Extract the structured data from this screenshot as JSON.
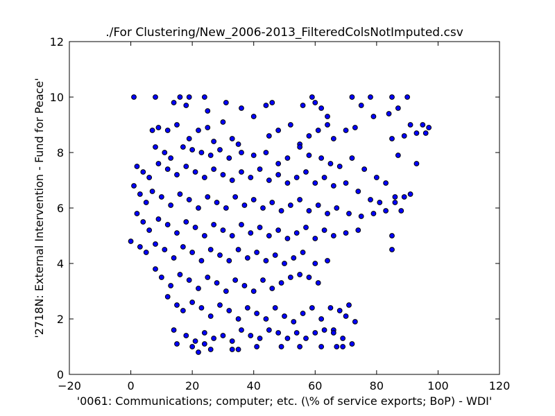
{
  "chart_data": {
    "type": "scatter",
    "title": "./For Clustering/New_2006-2013_FilteredColsNotImputed.csv",
    "xlabel": "'0061: Communications; computer; etc.  (\\% of service exports; BoP) - WDI'",
    "ylabel": "'2718N: External Intervention - Fund for Peace'",
    "xlim": [
      -20,
      120
    ],
    "ylim": [
      0,
      12
    ],
    "xticks": [
      -20,
      0,
      20,
      40,
      60,
      80,
      100,
      120
    ],
    "yticks": [
      0,
      2,
      4,
      6,
      8,
      10,
      12
    ],
    "xtick_labels": [
      "−20",
      "0",
      "20",
      "40",
      "60",
      "80",
      "100",
      "120"
    ],
    "ytick_labels": [
      "0",
      "2",
      "4",
      "6",
      "8",
      "10",
      "12"
    ],
    "grid": false,
    "marker_color": "#0000ff",
    "marker_edge_color": "#000000",
    "series": [
      {
        "name": "points",
        "points": [
          [
            1,
            10
          ],
          [
            8,
            10
          ],
          [
            16,
            10
          ],
          [
            19,
            10
          ],
          [
            24,
            10
          ],
          [
            14,
            9.8
          ],
          [
            18,
            9.7
          ],
          [
            25,
            9.5
          ],
          [
            31,
            9.8
          ],
          [
            36,
            9.6
          ],
          [
            44,
            9.7
          ],
          [
            46,
            9.8
          ],
          [
            56,
            9.7
          ],
          [
            59,
            10
          ],
          [
            60,
            9.8
          ],
          [
            62,
            9.6
          ],
          [
            64,
            9.3
          ],
          [
            72,
            10
          ],
          [
            75,
            9.7
          ],
          [
            78,
            10
          ],
          [
            79,
            9.3
          ],
          [
            85,
            10
          ],
          [
            87,
            9.6
          ],
          [
            90,
            10
          ],
          [
            84,
            9.4
          ],
          [
            91,
            9
          ],
          [
            93,
            8.7
          ],
          [
            95,
            9
          ],
          [
            97,
            8.9
          ],
          [
            96,
            8.7
          ],
          [
            89,
            8.6
          ],
          [
            93,
            7.6
          ],
          [
            85,
            8.5
          ],
          [
            87,
            7.9
          ],
          [
            91,
            6.5
          ],
          [
            89,
            6.4
          ],
          [
            88,
            5.9
          ],
          [
            86,
            6.2
          ],
          [
            85,
            5
          ],
          [
            85,
            4.5
          ],
          [
            7,
            8.8
          ],
          [
            9,
            8.9
          ],
          [
            12,
            8.8
          ],
          [
            15,
            9
          ],
          [
            19,
            8.5
          ],
          [
            22,
            8.8
          ],
          [
            25,
            8.9
          ],
          [
            27,
            8.4
          ],
          [
            30,
            9.1
          ],
          [
            33,
            8.5
          ],
          [
            35,
            8.3
          ],
          [
            40,
            9.3
          ],
          [
            45,
            8.6
          ],
          [
            48,
            8.8
          ],
          [
            52,
            9
          ],
          [
            55,
            8.3
          ],
          [
            58,
            8.6
          ],
          [
            61,
            8.8
          ],
          [
            64,
            9
          ],
          [
            66,
            8.5
          ],
          [
            70,
            8.8
          ],
          [
            73,
            8.9
          ],
          [
            8,
            8.2
          ],
          [
            11,
            8
          ],
          [
            13,
            7.8
          ],
          [
            17,
            8.2
          ],
          [
            20,
            8.1
          ],
          [
            23,
            8
          ],
          [
            26,
            7.9
          ],
          [
            29,
            8.1
          ],
          [
            32,
            7.8
          ],
          [
            36,
            8
          ],
          [
            40,
            7.9
          ],
          [
            44,
            8
          ],
          [
            48,
            7.6
          ],
          [
            51,
            7.8
          ],
          [
            55,
            8.2
          ],
          [
            58,
            7.9
          ],
          [
            62,
            7.8
          ],
          [
            65,
            7.6
          ],
          [
            68,
            7.5
          ],
          [
            72,
            7.8
          ],
          [
            76,
            7.4
          ],
          [
            80,
            7.1
          ],
          [
            83,
            6.9
          ],
          [
            2,
            7.5
          ],
          [
            4,
            7.3
          ],
          [
            6,
            7.1
          ],
          [
            9,
            7.6
          ],
          [
            12,
            7.4
          ],
          [
            15,
            7.2
          ],
          [
            18,
            7.5
          ],
          [
            21,
            7.3
          ],
          [
            24,
            7.1
          ],
          [
            27,
            7.4
          ],
          [
            30,
            7.2
          ],
          [
            33,
            7
          ],
          [
            36,
            7.3
          ],
          [
            39,
            7.1
          ],
          [
            42,
            7.4
          ],
          [
            45,
            7
          ],
          [
            48,
            7.2
          ],
          [
            51,
            6.9
          ],
          [
            54,
            7.1
          ],
          [
            57,
            7.3
          ],
          [
            60,
            6.9
          ],
          [
            63,
            7.1
          ],
          [
            66,
            6.8
          ],
          [
            70,
            6.9
          ],
          [
            74,
            6.6
          ],
          [
            78,
            6.3
          ],
          [
            81,
            6.2
          ],
          [
            86,
            6.4
          ],
          [
            1,
            6.8
          ],
          [
            3,
            6.5
          ],
          [
            5,
            6.2
          ],
          [
            7,
            6.6
          ],
          [
            10,
            6.4
          ],
          [
            13,
            6.1
          ],
          [
            16,
            6.5
          ],
          [
            19,
            6.3
          ],
          [
            22,
            6
          ],
          [
            25,
            6.4
          ],
          [
            28,
            6.2
          ],
          [
            31,
            6
          ],
          [
            34,
            6.4
          ],
          [
            37,
            6.1
          ],
          [
            40,
            6.3
          ],
          [
            43,
            6
          ],
          [
            46,
            6.2
          ],
          [
            49,
            5.9
          ],
          [
            52,
            6.1
          ],
          [
            55,
            6.3
          ],
          [
            58,
            5.9
          ],
          [
            61,
            6.1
          ],
          [
            64,
            5.8
          ],
          [
            67,
            6
          ],
          [
            71,
            5.8
          ],
          [
            75,
            5.7
          ],
          [
            79,
            5.8
          ],
          [
            83,
            5.9
          ],
          [
            2,
            5.8
          ],
          [
            4,
            5.5
          ],
          [
            6,
            5.2
          ],
          [
            9,
            5.6
          ],
          [
            12,
            5.4
          ],
          [
            15,
            5.1
          ],
          [
            18,
            5.5
          ],
          [
            21,
            5.3
          ],
          [
            24,
            5
          ],
          [
            27,
            5.4
          ],
          [
            30,
            5.2
          ],
          [
            33,
            5
          ],
          [
            36,
            5.4
          ],
          [
            39,
            5.1
          ],
          [
            42,
            5.3
          ],
          [
            45,
            5
          ],
          [
            48,
            5.2
          ],
          [
            51,
            4.9
          ],
          [
            54,
            5.1
          ],
          [
            57,
            5.3
          ],
          [
            60,
            4.9
          ],
          [
            63,
            5.2
          ],
          [
            66,
            5
          ],
          [
            70,
            5.1
          ],
          [
            74,
            5.2
          ],
          [
            0,
            4.8
          ],
          [
            3,
            4.6
          ],
          [
            5,
            4.4
          ],
          [
            8,
            4.7
          ],
          [
            11,
            4.5
          ],
          [
            14,
            4.2
          ],
          [
            17,
            4.6
          ],
          [
            20,
            4.4
          ],
          [
            23,
            4.1
          ],
          [
            26,
            4.5
          ],
          [
            29,
            4.3
          ],
          [
            32,
            4.1
          ],
          [
            35,
            4.5
          ],
          [
            38,
            4.2
          ],
          [
            41,
            4.4
          ],
          [
            44,
            4.1
          ],
          [
            47,
            4.3
          ],
          [
            50,
            4
          ],
          [
            53,
            4.2
          ],
          [
            56,
            4.4
          ],
          [
            60,
            4
          ],
          [
            64,
            4.1
          ],
          [
            8,
            3.8
          ],
          [
            10,
            3.5
          ],
          [
            13,
            3.2
          ],
          [
            16,
            3.6
          ],
          [
            19,
            3.4
          ],
          [
            22,
            3.1
          ],
          [
            25,
            3.5
          ],
          [
            28,
            3.3
          ],
          [
            31,
            3
          ],
          [
            34,
            3.4
          ],
          [
            37,
            3.2
          ],
          [
            40,
            3
          ],
          [
            43,
            3.4
          ],
          [
            46,
            3.1
          ],
          [
            49,
            3.3
          ],
          [
            52,
            3.5
          ],
          [
            55,
            3.6
          ],
          [
            58,
            3.5
          ],
          [
            61,
            3.3
          ],
          [
            12,
            2.8
          ],
          [
            15,
            2.5
          ],
          [
            17,
            2.3
          ],
          [
            20,
            2.6
          ],
          [
            23,
            2.4
          ],
          [
            26,
            2.1
          ],
          [
            29,
            2.5
          ],
          [
            32,
            2.3
          ],
          [
            35,
            2
          ],
          [
            38,
            2.4
          ],
          [
            41,
            2.2
          ],
          [
            44,
            2
          ],
          [
            47,
            2.4
          ],
          [
            50,
            2.1
          ],
          [
            53,
            1.9
          ],
          [
            56,
            2.2
          ],
          [
            59,
            2.4
          ],
          [
            62,
            2
          ],
          [
            65,
            2.4
          ],
          [
            68,
            2.3
          ],
          [
            71,
            2.5
          ],
          [
            73,
            1.9
          ],
          [
            70,
            2.1
          ],
          [
            66,
            1.6
          ],
          [
            14,
            1.6
          ],
          [
            18,
            1.4
          ],
          [
            21,
            1.2
          ],
          [
            24,
            1.5
          ],
          [
            27,
            1.3
          ],
          [
            30,
            1.4
          ],
          [
            33,
            1.2
          ],
          [
            36,
            1.6
          ],
          [
            39,
            1.4
          ],
          [
            42,
            1.3
          ],
          [
            45,
            1.6
          ],
          [
            48,
            1.5
          ],
          [
            51,
            1.3
          ],
          [
            54,
            1.5
          ],
          [
            57,
            1.3
          ],
          [
            60,
            1.5
          ],
          [
            63,
            1.6
          ],
          [
            66,
            1.5
          ],
          [
            69,
            1.3
          ],
          [
            72,
            1.1
          ],
          [
            15,
            1.1
          ],
          [
            20,
            1
          ],
          [
            22,
            0.8
          ],
          [
            24,
            1.1
          ],
          [
            26,
            0.9
          ],
          [
            33,
            0.9
          ],
          [
            35,
            0.9
          ],
          [
            41,
            1
          ],
          [
            49,
            1
          ],
          [
            55,
            1
          ],
          [
            62,
            1
          ],
          [
            67,
            1
          ],
          [
            69,
            1
          ]
        ]
      }
    ]
  }
}
